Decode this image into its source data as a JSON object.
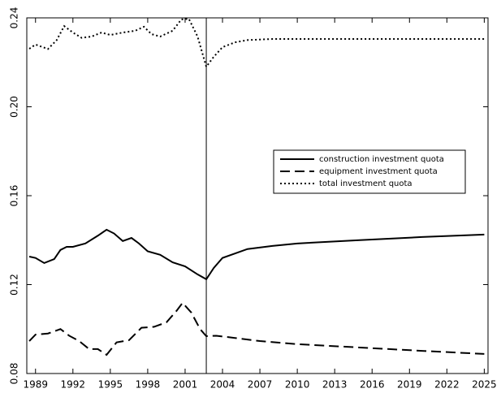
{
  "chart_data": {
    "type": "line",
    "xlim": [
      1988.3,
      2025.3
    ],
    "xticks": [
      1989,
      1992,
      1995,
      1998,
      2001,
      2004,
      2007,
      2010,
      2013,
      2016,
      2019,
      2022,
      2025
    ],
    "ylim": [
      0.08,
      0.24
    ],
    "yticks": [
      0.08,
      0.12,
      0.16,
      {
        "value": 0.2,
        "label": "0.20"
      },
      0.24
    ],
    "vline": 2002.7,
    "legend": "right",
    "series": [
      {
        "name": "construction investment quota",
        "color": "#000000",
        "style": "solid",
        "x": [
          1988.5,
          1989,
          1989.7,
          1990.5,
          1991,
          1991.5,
          1992,
          1993,
          1994,
          1994.7,
          1995.3,
          1996,
          1996.7,
          1997.3,
          1998,
          1999,
          2000,
          2001,
          2002,
          2002.7,
          2003.3,
          2004,
          2005,
          2006,
          2008,
          2010,
          2015,
          2020,
          2025
        ],
        "values": [
          0.1326,
          0.132,
          0.1297,
          0.1315,
          0.1356,
          0.137,
          0.137,
          0.1385,
          0.142,
          0.1447,
          0.143,
          0.1396,
          0.141,
          0.1385,
          0.135,
          0.1334,
          0.13,
          0.1282,
          0.1246,
          0.1224,
          0.1275,
          0.132,
          0.134,
          0.136,
          0.1374,
          0.1385,
          0.14,
          0.1414,
          0.1425
        ]
      },
      {
        "name": "equipment investment quota",
        "color": "#000000",
        "style": "dashed",
        "x": [
          1988.5,
          1989,
          1990,
          1991,
          1991.7,
          1992.5,
          1993.3,
          1994,
          1994.7,
          1995.5,
          1996.5,
          1997.5,
          1998.5,
          1999.5,
          2000.3,
          2000.8,
          2001.5,
          2002.2,
          2002.7,
          2003.5,
          2005,
          2007,
          2010,
          2015,
          2020,
          2025
        ],
        "values": [
          0.0946,
          0.0975,
          0.098,
          0.1,
          0.097,
          0.0946,
          0.091,
          0.091,
          0.0884,
          0.094,
          0.095,
          0.1006,
          0.101,
          0.103,
          0.1081,
          0.1118,
          0.1074,
          0.1,
          0.0968,
          0.097,
          0.096,
          0.0946,
          0.0932,
          0.0917,
          0.0902,
          0.0888
        ]
      },
      {
        "name": "total investment quota",
        "color": "#000000",
        "style": "dotted",
        "x": [
          1988.5,
          1989,
          1990,
          1990.7,
          1991.3,
          1992,
          1992.7,
          1993.5,
          1994.3,
          1995,
          1996,
          1997,
          1997.7,
          1998.3,
          1999,
          2000,
          2000.7,
          2001.3,
          2002,
          2002.7,
          2003.3,
          2004,
          2005,
          2006,
          2008,
          2025
        ],
        "values": [
          0.2261,
          0.228,
          0.226,
          0.23,
          0.2363,
          0.2334,
          0.231,
          0.2316,
          0.2334,
          0.2323,
          0.2334,
          0.2342,
          0.236,
          0.2327,
          0.2316,
          0.2342,
          0.2393,
          0.2396,
          0.2316,
          0.218,
          0.2225,
          0.2268,
          0.229,
          0.23,
          0.2305,
          0.2305
        ]
      }
    ]
  }
}
